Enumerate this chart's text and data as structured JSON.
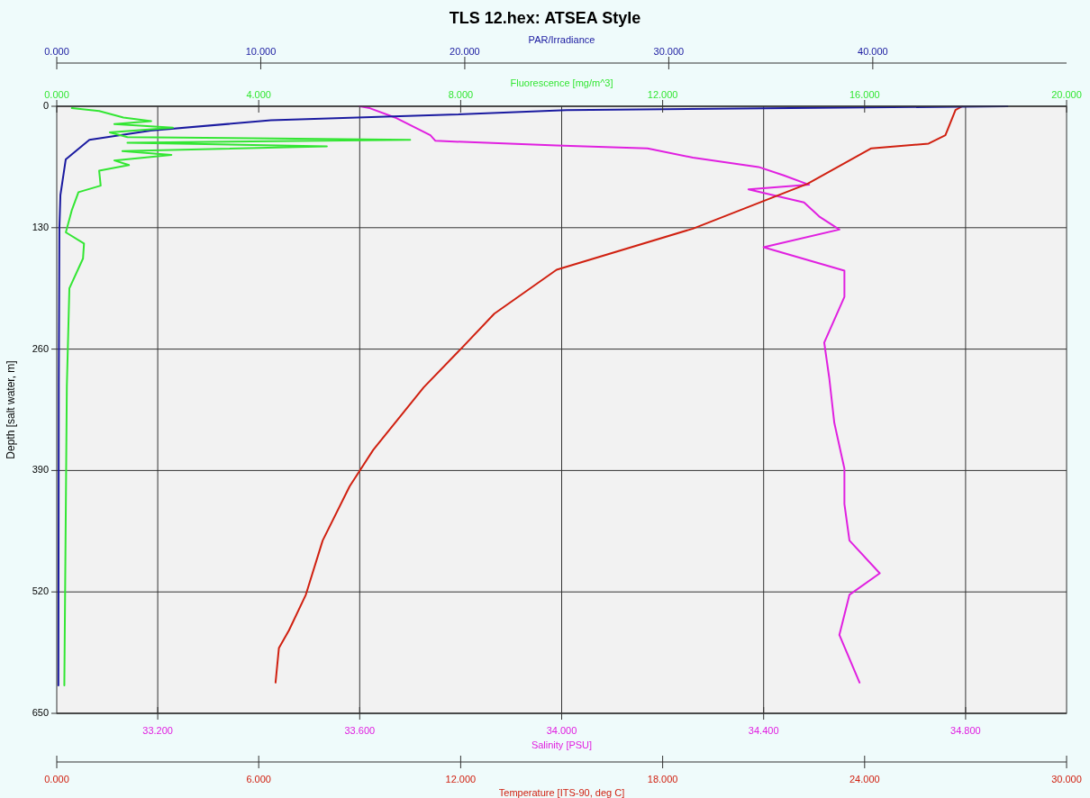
{
  "chart_data": [
    {
      "type": "line",
      "title": "TLS 12.hex: ATSEA Style",
      "xlabel": "Salinity [PSU]",
      "x2label": "Temperature [ITS-90, deg C]",
      "ylabel": "Depth [salt water, m]",
      "xlim": [
        33.0,
        35.0
      ],
      "xticks": [
        {
          "value": 33.2,
          "label": "33.200"
        },
        {
          "value": 33.6,
          "label": "33.600"
        },
        {
          "value": 34.0,
          "label": "34.000"
        },
        {
          "value": 34.4,
          "label": "34.400"
        },
        {
          "value": 34.8,
          "label": "34.800"
        }
      ],
      "x2lim": [
        0,
        30
      ],
      "x2ticks": [
        {
          "value": 0,
          "label": "0.000"
        },
        {
          "value": 6,
          "label": "6.000"
        },
        {
          "value": 12,
          "label": "12.000"
        },
        {
          "value": 18,
          "label": "18.000"
        },
        {
          "value": 24,
          "label": "24.000"
        },
        {
          "value": 30,
          "label": "30.000"
        }
      ],
      "ylim": [
        650,
        0
      ],
      "yticks": [
        0,
        130,
        260,
        390,
        520,
        650
      ],
      "grid": true,
      "marker": "none",
      "line_style": "solid",
      "series": [
        {
          "color": "#e020e0",
          "x": [
            33.6,
            33.62,
            33.67,
            33.74,
            33.75,
            33.99,
            34.17,
            34.26,
            34.39,
            34.44,
            34.49,
            34.37,
            34.48,
            34.51,
            34.55,
            34.4,
            34.56,
            34.56,
            34.52,
            34.53,
            34.54,
            34.56,
            34.56,
            34.57,
            34.63,
            34.57,
            34.55,
            34.59
          ],
          "values": [
            0,
            2,
            12,
            31,
            37,
            42,
            45,
            55,
            65,
            74,
            84,
            89,
            103,
            118,
            132,
            151,
            176,
            204,
            253,
            291,
            339,
            388,
            426,
            465,
            500,
            523,
            566,
            617
          ]
        },
        {
          "axis": "x2",
          "color": "#d02010",
          "x": [
            26.9,
            26.7,
            26.4,
            25.9,
            24.2,
            22.3,
            18.9,
            14.85,
            13.0,
            12.0,
            10.9,
            9.4,
            8.7,
            7.9,
            7.4,
            6.9,
            6.6,
            6.5
          ],
          "values": [
            0,
            4,
            31,
            40,
            45,
            83,
            131,
            175,
            222,
            260,
            301,
            368,
            407,
            465,
            523,
            561,
            580,
            617
          ]
        }
      ]
    },
    {
      "type": "line",
      "xlabel": "Fluorescence [mg/m^3]",
      "x2label": "PAR/Irradiance",
      "xlim": [
        0,
        20
      ],
      "xticks": [
        {
          "value": 0,
          "label": "0.000"
        },
        {
          "value": 4,
          "label": "4.000"
        },
        {
          "value": 8,
          "label": "8.000"
        },
        {
          "value": 12,
          "label": "12.000"
        },
        {
          "value": 16,
          "label": "16.000"
        },
        {
          "value": 20,
          "label": "20.000"
        }
      ],
      "x2lim": [
        0,
        49.5
      ],
      "x2ticks": [
        {
          "value": 0,
          "label": "0.000"
        },
        {
          "value": 10,
          "label": "10.000"
        },
        {
          "value": 20,
          "label": "20.000"
        },
        {
          "value": 30,
          "label": "30.000"
        },
        {
          "value": 40,
          "label": "40.000"
        }
      ],
      "ylim": [
        650,
        0
      ],
      "tick_labels": "x",
      "marker": "none",
      "line_style": "solid",
      "series": [
        {
          "axis": "x2",
          "color": "#1a1aa0",
          "x": [
            46.6,
            36,
            25,
            19.3,
            10.5,
            4.6,
            1.6,
            0.44,
            0.18,
            0.13,
            0.1,
            0.08
          ],
          "values": [
            0,
            2,
            4,
            9,
            15,
            26,
            36,
            57,
            95,
            130,
            300,
            620
          ]
        },
        {
          "color": "#33e633",
          "x": [
            0.3,
            0.84,
            1.32,
            1.87,
            1.14,
            2.3,
            1.05,
            1.4,
            7.0,
            1.4,
            5.35,
            1.3,
            2.27,
            1.14,
            1.43,
            0.84,
            0.87,
            0.43,
            0.3,
            0.18,
            0.54,
            0.52,
            0.25,
            0.2,
            0.15
          ],
          "values": [
            2,
            5,
            12,
            16,
            19,
            23,
            28,
            33,
            36,
            39,
            43,
            48,
            52,
            58,
            63,
            69,
            85,
            92,
            111,
            135,
            147,
            163,
            195,
            300,
            620
          ]
        }
      ]
    }
  ]
}
